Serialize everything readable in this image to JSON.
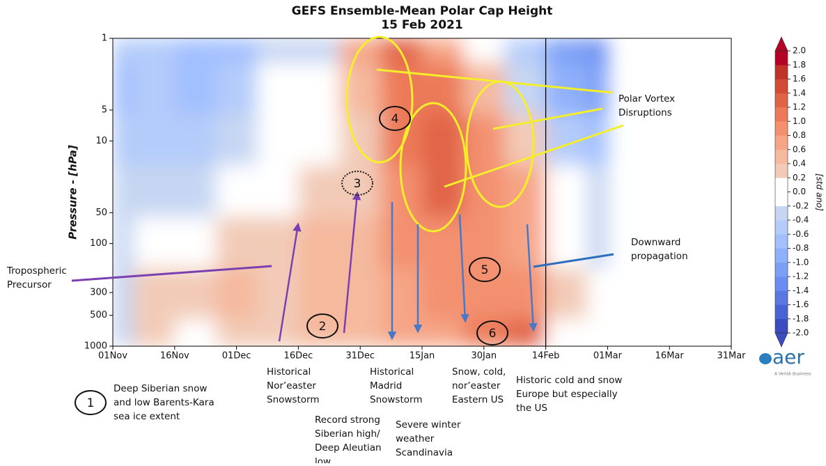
{
  "chart_data": {
    "type": "heatmap",
    "title": "GEFS Ensemble-Mean Polar Cap Height",
    "subtitle": "15 Feb 2021",
    "ylabel": "Pressure - [hPa]",
    "ylog": true,
    "yinvert": true,
    "xlim": [
      0,
      150
    ],
    "ylim": [
      1,
      1000
    ],
    "xticks": [
      {
        "value": 0,
        "label": "01Nov"
      },
      {
        "value": 15,
        "label": "16Nov"
      },
      {
        "value": 30,
        "label": "01Dec"
      },
      {
        "value": 45,
        "label": "16Dec"
      },
      {
        "value": 60,
        "label": "31Dec"
      },
      {
        "value": 75,
        "label": "15Jan"
      },
      {
        "value": 90,
        "label": "30Jan"
      },
      {
        "value": 105,
        "label": "14Feb"
      },
      {
        "value": 120,
        "label": "01Mar"
      },
      {
        "value": 135,
        "label": "16Mar"
      },
      {
        "value": 150,
        "label": "31Mar"
      }
    ],
    "yticks": [
      1,
      5,
      10,
      50,
      100,
      300,
      500,
      1000
    ],
    "x": [
      0,
      10,
      20,
      30,
      40,
      50,
      60,
      70,
      80,
      90,
      100,
      110,
      120
    ],
    "y": [
      1,
      3,
      10,
      30,
      100,
      300,
      1000
    ],
    "values": [
      [
        -0.6,
        -0.8,
        -0.6,
        -0.4,
        -0.4,
        -0.4,
        -0.4
      ],
      [
        -0.6,
        -0.6,
        -0.6,
        -0.4,
        -0.2,
        0.2,
        0.2
      ],
      [
        -0.8,
        -0.8,
        -0.6,
        -0.4,
        -0.2,
        0.2,
        -0.2
      ],
      [
        -0.8,
        -0.6,
        -0.4,
        -0.2,
        0.2,
        0.4,
        0.2
      ],
      [
        -0.4,
        -0.2,
        0.1,
        0.1,
        0.2,
        0.3,
        0.2
      ],
      [
        -0.4,
        -0.2,
        -0.2,
        0.2,
        0.4,
        0.4,
        0.4
      ],
      [
        0.6,
        0.4,
        0.2,
        0.2,
        0.4,
        0.4,
        0.4
      ],
      [
        1.2,
        1.0,
        1.0,
        0.8,
        0.8,
        0.6,
        0.6
      ],
      [
        0.6,
        1.0,
        1.2,
        1.2,
        0.8,
        0.8,
        0.6
      ],
      [
        -0.2,
        0.4,
        0.8,
        0.8,
        0.8,
        0.8,
        1.0
      ],
      [
        -0.6,
        -0.4,
        0.2,
        0.6,
        0.6,
        0.8,
        1.2
      ],
      [
        -1.2,
        -1.0,
        -0.6,
        -0.2,
        -0.2,
        0.2,
        -0.2
      ],
      [
        -1.4,
        -1.2,
        -0.8,
        -0.4,
        -0.4,
        -0.2,
        -0.2
      ]
    ],
    "vline": 105,
    "colorbar": {
      "label": "[std ano]",
      "colors": [
        "#3b4cc0",
        "#4a63d3",
        "#5a78e0",
        "#6b8df0",
        "#7c9ff6",
        "#8fb0fb",
        "#a2bffe",
        "#b4ccfa",
        "#c6d6f2",
        "#ffffff",
        "#ffffff",
        "#f2cbb7",
        "#f5b99e",
        "#f6a586",
        "#f3906f",
        "#ec7a59",
        "#e16346",
        "#d24b36",
        "#c03326",
        "#b40426"
      ],
      "ticks": [
        {
          "value": 2,
          "label": "2.0"
        },
        {
          "value": 1.8,
          "label": "1.8"
        },
        {
          "value": 1.6,
          "label": "1.6"
        },
        {
          "value": 1.4,
          "label": "1.4"
        },
        {
          "value": 1.2,
          "label": "1.2"
        },
        {
          "value": 1,
          "label": "1.0"
        },
        {
          "value": 0.8,
          "label": "0.8"
        },
        {
          "value": 0.6,
          "label": "0.6"
        },
        {
          "value": 0.4,
          "label": "0.4"
        },
        {
          "value": 0.2,
          "label": "0.2"
        },
        {
          "value": 0,
          "label": "0.0"
        },
        {
          "value": -0.2,
          "label": "-0.2"
        },
        {
          "value": -0.4,
          "label": "-0.4"
        },
        {
          "value": -0.6,
          "label": "-0.6"
        },
        {
          "value": -0.8,
          "label": "-0.8"
        },
        {
          "value": -1,
          "label": "-1.0"
        },
        {
          "value": -1.2,
          "label": "-1.2"
        },
        {
          "value": -1.4,
          "label": "-1.4"
        },
        {
          "value": -1.6,
          "label": "-1.6"
        },
        {
          "value": -1.8,
          "label": "-1.8"
        },
        {
          "value": -2,
          "label": "-2.0"
        }
      ]
    },
    "annotations": [
      [
        "Polar Vortex",
        "Disruptions"
      ],
      [
        "Downward",
        "propagation"
      ],
      [
        "Tropospheric",
        "Precursor"
      ],
      [
        "Historical",
        "Nor’easter",
        "Snowstorm"
      ],
      [
        "Historical",
        "Madrid",
        "Snowstorm"
      ],
      [
        "Snow, cold,",
        "nor’easter",
        "Eastern US"
      ],
      [
        "Historic cold and snow",
        "Europe but especially",
        "the US"
      ],
      [
        "Deep Siberian snow",
        "and low Barents-Kara",
        "sea ice extent"
      ],
      [
        "Record strong",
        "Siberian high/",
        "Deep Aleutian",
        "low"
      ],
      [
        "Severe winter",
        "weather",
        "Scandinavia"
      ]
    ],
    "markers": [
      "1",
      "2",
      "3",
      "4",
      "5",
      "6"
    ],
    "logo": {
      "text": "aer",
      "tagline": "A Verisk Business"
    }
  }
}
